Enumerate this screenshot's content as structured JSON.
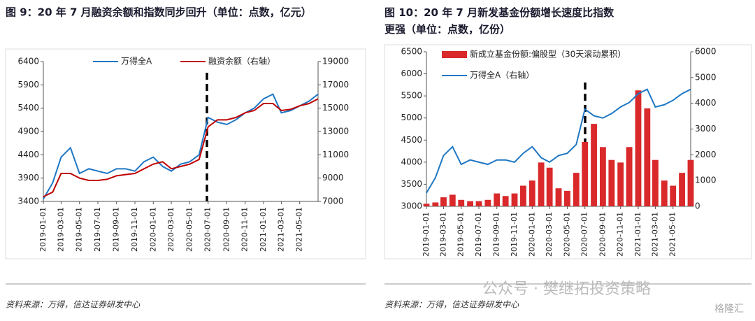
{
  "chart_data": [
    {
      "type": "line",
      "title": "图 9：20 年 7 月融资余额和指数同步回升（单位：点数，亿元）",
      "x": [
        "2019-01-01",
        "2019-02-01",
        "2019-03-01",
        "2019-04-01",
        "2019-05-01",
        "2019-06-01",
        "2019-07-01",
        "2019-08-01",
        "2019-09-01",
        "2019-10-01",
        "2019-11-01",
        "2019-12-01",
        "2020-01-01",
        "2020-02-01",
        "2020-03-01",
        "2020-04-01",
        "2020-05-01",
        "2020-06-01",
        "2020-07-01",
        "2020-08-01",
        "2020-09-01",
        "2020-10-01",
        "2020-11-01",
        "2020-12-01",
        "2021-01-01",
        "2021-02-01",
        "2021-03-01",
        "2021-04-01",
        "2021-05-01",
        "2021-06-01",
        "2021-07-01"
      ],
      "xticks": [
        "2019-01-01",
        "2019-03-01",
        "2019-05-01",
        "2019-07-01",
        "2019-09-01",
        "2019-11-01",
        "2020-01-01",
        "2020-03-01",
        "2020-05-01",
        "2020-07-01",
        "2020-09-01",
        "2020-11-01",
        "2021-01-01",
        "2021-03-01",
        "2021-05-01"
      ],
      "ylim": [
        3400,
        6400
      ],
      "yticks": [
        3400,
        3900,
        4400,
        4900,
        5400,
        5900,
        6400
      ],
      "y2lim": [
        7000,
        19000
      ],
      "y2ticks": [
        7000,
        9000,
        11000,
        13000,
        15000,
        17000,
        19000
      ],
      "series": [
        {
          "name": "万得全A",
          "color": "#1f77c4",
          "values": [
            3450,
            3800,
            4350,
            4550,
            4000,
            4100,
            4050,
            4000,
            4100,
            4100,
            4050,
            4250,
            4350,
            4150,
            4050,
            4200,
            4250,
            4400,
            5200,
            5100,
            5050,
            5150,
            5300,
            5400,
            5600,
            5700,
            5300,
            5350,
            5450,
            5550,
            5700
          ]
        },
        {
          "name": "融资余额（右轴）",
          "color": "#c00000",
          "axis": "y2",
          "values": [
            7400,
            7800,
            9400,
            9400,
            9000,
            8800,
            8800,
            8900,
            9200,
            9300,
            9400,
            9800,
            10200,
            10400,
            9800,
            10000,
            10200,
            10600,
            13400,
            14000,
            14000,
            14200,
            14600,
            14800,
            15400,
            15400,
            14800,
            14900,
            15200,
            15400,
            15800
          ]
        }
      ],
      "source": "资料来源：万得，信达证券研发中心"
    },
    {
      "type": "combo",
      "title": "图 10：20 年 7 月新发基金份额增长速度比指数更强（单位：点数，亿份）",
      "x": [
        "2019-01-01",
        "2019-02-01",
        "2019-03-01",
        "2019-04-01",
        "2019-05-01",
        "2019-06-01",
        "2019-07-01",
        "2019-08-01",
        "2019-09-01",
        "2019-10-01",
        "2019-11-01",
        "2019-12-01",
        "2020-01-01",
        "2020-02-01",
        "2020-03-01",
        "2020-04-01",
        "2020-05-01",
        "2020-06-01",
        "2020-07-01",
        "2020-08-01",
        "2020-09-01",
        "2020-10-01",
        "2020-11-01",
        "2020-12-01",
        "2021-01-01",
        "2021-02-01",
        "2021-03-01",
        "2021-04-01",
        "2021-05-01",
        "2021-06-01",
        "2021-07-01"
      ],
      "xticks": [
        "2019-01-01",
        "2019-03-01",
        "2019-05-01",
        "2019-07-01",
        "2019-09-01",
        "2019-11-01",
        "2020-01-01",
        "2020-03-01",
        "2020-05-01",
        "2020-07-01",
        "2020-09-01",
        "2020-11-01",
        "2021-01-01",
        "2021-03-01",
        "2021-05-01"
      ],
      "ylim": [
        3000,
        6500
      ],
      "yticks": [
        3000,
        3500,
        4000,
        4500,
        5000,
        5500,
        6000,
        6500
      ],
      "y2lim": [
        0,
        6000
      ],
      "y2ticks": [
        0,
        1000,
        2000,
        3000,
        4000,
        5000,
        6000
      ],
      "series": [
        {
          "name": "新成立基金份额:偏股型（30天滚动累积）",
          "type": "bar",
          "color": "#d9292b",
          "axis": "y2",
          "values": [
            100,
            150,
            350,
            450,
            250,
            200,
            200,
            250,
            500,
            400,
            500,
            800,
            1000,
            1700,
            1500,
            700,
            600,
            1300,
            2500,
            3200,
            2300,
            1800,
            1700,
            2300,
            4500,
            3800,
            1800,
            1000,
            800,
            1300,
            1800
          ]
        },
        {
          "name": "万得全A（右轴）",
          "type": "line",
          "color": "#1f77c4",
          "values": [
            3300,
            3650,
            4150,
            4350,
            3950,
            4050,
            4000,
            3950,
            4050,
            4050,
            4000,
            4200,
            4350,
            4100,
            4000,
            4150,
            4200,
            4400,
            5200,
            5050,
            5000,
            5100,
            5250,
            5350,
            5550,
            5650,
            5250,
            5300,
            5400,
            5550,
            5650
          ]
        }
      ],
      "source": "资料来源：万得，信达证券研发中心"
    }
  ],
  "watermark": "公众号 · 樊继拓投资策略",
  "logo": "格隆汇"
}
